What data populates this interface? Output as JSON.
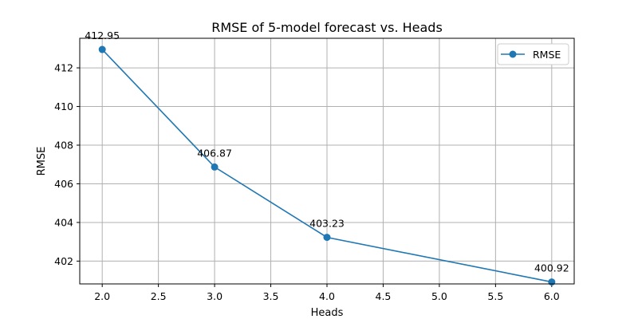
{
  "chart_data": {
    "type": "line",
    "title": "RMSE of 5-model forecast vs. Heads",
    "xlabel": "Heads",
    "ylabel": "RMSE",
    "x": [
      2.0,
      3.0,
      4.0,
      6.0
    ],
    "series": [
      {
        "name": "RMSE",
        "values": [
          412.95,
          406.87,
          403.23,
          400.92
        ],
        "labels": [
          "412.95",
          "406.87",
          "403.23",
          "400.92"
        ],
        "color": "#1f77b4",
        "marker": "circle"
      }
    ],
    "xlim": [
      1.8,
      6.2
    ],
    "ylim": [
      400.82,
      413.53
    ],
    "xticks": [
      2.0,
      2.5,
      3.0,
      3.5,
      4.0,
      4.5,
      5.0,
      5.5,
      6.0
    ],
    "xtick_labels": [
      "2.0",
      "2.5",
      "3.0",
      "3.5",
      "4.0",
      "4.5",
      "5.0",
      "5.5",
      "6.0"
    ],
    "yticks": [
      402,
      404,
      406,
      408,
      410,
      412
    ],
    "ytick_labels": [
      "402",
      "404",
      "406",
      "408",
      "410",
      "412"
    ],
    "grid": true,
    "legend_position": "top-right"
  }
}
